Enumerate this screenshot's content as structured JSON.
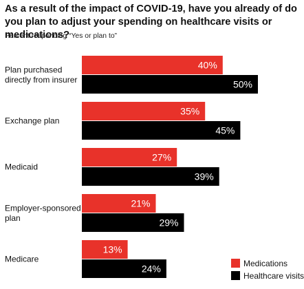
{
  "chart_data": {
    "type": "bar",
    "orientation": "horizontal",
    "title": "As a result of the impact of COVID-19, have you already of do you plan to adjust your spending on healthcare visits or medications?",
    "subtitle": "Percent responding “Yes or plan to”",
    "categories": [
      [
        "Plan purchased",
        "directly from insurer"
      ],
      [
        "Exchange plan"
      ],
      [
        "Medicaid"
      ],
      [
        "Employer-sponsored",
        "plan"
      ],
      [
        "Medicare"
      ]
    ],
    "series": [
      {
        "name": "Medications",
        "color": "#e8322a",
        "values": [
          40,
          35,
          27,
          21,
          13
        ],
        "labels": [
          "40%",
          "35%",
          "27%",
          "21%",
          "13%"
        ]
      },
      {
        "name": "Healthcare visits",
        "color": "#000000",
        "values": [
          50,
          45,
          39,
          29,
          24
        ],
        "labels": [
          "50%",
          "45%",
          "39%",
          "29%",
          "24%"
        ]
      }
    ],
    "xlim": [
      0,
      50
    ],
    "grid": false,
    "legend_position": "bottom-right"
  }
}
